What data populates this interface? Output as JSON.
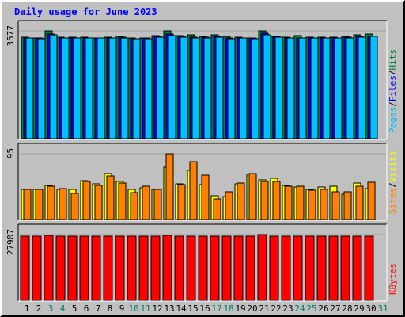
{
  "title": "Daily usage for June 2023",
  "chart_data": [
    {
      "type": "bar",
      "name": "pages-files-hits",
      "ymax_label": "3577",
      "legend": [
        {
          "label": "Pages",
          "color": "#00c0ff"
        },
        {
          "label": "/",
          "color": "#000000"
        },
        {
          "label": "Files",
          "color": "#0000ff"
        },
        {
          "label": "/",
          "color": "#000000"
        },
        {
          "label": "Hits",
          "color": "#008040"
        }
      ],
      "colors": {
        "hits": "#008040",
        "files": "#0000ff",
        "pages": "#00c0ff"
      },
      "ylim": [
        0,
        3577
      ],
      "categories": [
        "1",
        "2",
        "3",
        "4",
        "5",
        "6",
        "7",
        "8",
        "9",
        "10",
        "11",
        "12",
        "13",
        "14",
        "15",
        "16",
        "17",
        "18",
        "19",
        "20",
        "21",
        "22",
        "23",
        "24",
        "25",
        "26",
        "27",
        "28",
        "29",
        "30"
      ],
      "series": [
        {
          "key": "hits",
          "values": [
            3360,
            3350,
            3577,
            3360,
            3360,
            3360,
            3350,
            3370,
            3380,
            3340,
            3350,
            3420,
            3570,
            3410,
            3450,
            3380,
            3440,
            3380,
            3360,
            3350,
            3570,
            3400,
            3360,
            3420,
            3360,
            3360,
            3360,
            3380,
            3440,
            3470
          ]
        },
        {
          "key": "files",
          "values": [
            3340,
            3330,
            3470,
            3350,
            3350,
            3350,
            3340,
            3350,
            3360,
            3320,
            3330,
            3380,
            3460,
            3380,
            3370,
            3360,
            3380,
            3330,
            3340,
            3330,
            3490,
            3380,
            3340,
            3350,
            3340,
            3340,
            3340,
            3360,
            3380,
            3400
          ]
        },
        {
          "key": "pages",
          "values": [
            3330,
            3320,
            3440,
            3340,
            3340,
            3340,
            3330,
            3340,
            3350,
            3310,
            3320,
            3360,
            3420,
            3360,
            3350,
            3350,
            3360,
            3320,
            3330,
            3320,
            3440,
            3360,
            3330,
            3340,
            3330,
            3330,
            3330,
            3350,
            3360,
            3380
          ]
        }
      ]
    },
    {
      "type": "bar",
      "name": "sites-visits",
      "ymax_label": "95",
      "legend": [
        {
          "label": "Sites",
          "color": "#ff8000"
        },
        {
          "label": "/",
          "color": "#000000"
        },
        {
          "label": "Visits",
          "color": "#ffff00"
        }
      ],
      "colors": {
        "visits": "#ffff00",
        "sites": "#ff8000"
      },
      "ylim": [
        0,
        95
      ],
      "categories": [
        "1",
        "2",
        "3",
        "4",
        "5",
        "6",
        "7",
        "8",
        "9",
        "10",
        "11",
        "12",
        "13",
        "14",
        "15",
        "16",
        "17",
        "18",
        "19",
        "20",
        "21",
        "22",
        "23",
        "24",
        "25",
        "26",
        "27",
        "28",
        "29",
        "30"
      ],
      "series": [
        {
          "key": "visits",
          "values": [
            44,
            44,
            49,
            44,
            44,
            56,
            52,
            66,
            55,
            44,
            46,
            44,
            75,
            52,
            71,
            50,
            34,
            33,
            51,
            65,
            57,
            59,
            49,
            47,
            44,
            47,
            48,
            37,
            53,
            45
          ]
        },
        {
          "key": "sites",
          "values": [
            43,
            43,
            48,
            45,
            38,
            55,
            49,
            63,
            53,
            39,
            48,
            44,
            95,
            50,
            84,
            64,
            30,
            40,
            53,
            66,
            55,
            55,
            48,
            48,
            42,
            43,
            40,
            40,
            48,
            54
          ]
        }
      ]
    },
    {
      "type": "bar",
      "name": "kbytes",
      "ymax_label": "27907",
      "legend": [
        {
          "label": "KBytes",
          "color": "#ff0000"
        }
      ],
      "colors": {
        "kbytes": "#ff0000"
      },
      "ylim": [
        0,
        27907
      ],
      "categories": [
        "1",
        "2",
        "3",
        "4",
        "5",
        "6",
        "7",
        "8",
        "9",
        "10",
        "11",
        "12",
        "13",
        "14",
        "15",
        "16",
        "17",
        "18",
        "19",
        "20",
        "21",
        "22",
        "23",
        "24",
        "25",
        "26",
        "27",
        "28",
        "29",
        "30"
      ],
      "series": [
        {
          "key": "kbytes",
          "values": [
            27200,
            27200,
            27700,
            27200,
            27200,
            27200,
            27200,
            27400,
            27200,
            27200,
            27200,
            27300,
            27700,
            27400,
            27400,
            27400,
            27400,
            27200,
            27200,
            27300,
            27907,
            27300,
            27200,
            27400,
            27300,
            27300,
            27400,
            27300,
            27400,
            27400
          ]
        }
      ]
    }
  ],
  "x_axis": {
    "days": [
      "1",
      "2",
      "3",
      "4",
      "5",
      "6",
      "7",
      "8",
      "9",
      "10",
      "11",
      "12",
      "13",
      "14",
      "15",
      "16",
      "17",
      "18",
      "19",
      "20",
      "21",
      "22",
      "23",
      "24",
      "25",
      "26",
      "27",
      "28",
      "29",
      "30",
      "31"
    ],
    "weekend_days": [
      "3",
      "4",
      "10",
      "11",
      "17",
      "18",
      "24",
      "25",
      "31"
    ],
    "weekday_color": "#000000",
    "weekend_color": "#00805c"
  }
}
